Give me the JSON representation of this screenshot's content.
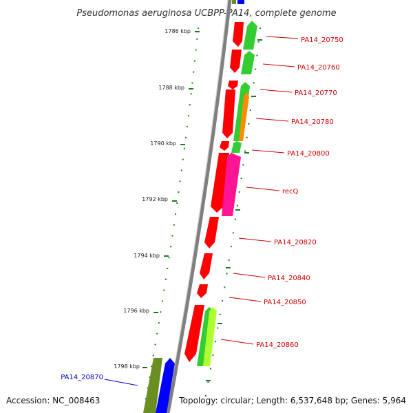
{
  "title": "Pseudomonas aeruginosa UCBPP-PA14, complete genome",
  "accession": "Accession: NC_008463",
  "topology": "Topology: circular; Length: 6,537,648 bp; Genes: 5,964",
  "colors": {
    "backbone": "#808080",
    "tick": "#1a7a1a",
    "label_red": "#cc0000",
    "label_blue": "#0000cc",
    "red": "#ff0000",
    "green": "#33cc33",
    "magenta": "#ff1493",
    "orange": "#ff8c00",
    "yellowgreen": "#adff2f",
    "olive": "#6b8e23",
    "blue": "#0000ff"
  },
  "ticks": [
    "1786 kbp",
    "1788 kbp",
    "1790 kbp",
    "1792 kbp",
    "1794 kbp",
    "1796 kbp",
    "1798 kbp"
  ],
  "gene_labels": [
    {
      "text": "PA14_20750",
      "color": "red"
    },
    {
      "text": "PA14_20760",
      "color": "red"
    },
    {
      "text": "PA14_20770",
      "color": "red"
    },
    {
      "text": "PA14_20780",
      "color": "red"
    },
    {
      "text": "PA14_20800",
      "color": "red"
    },
    {
      "text": "recQ",
      "color": "red"
    },
    {
      "text": "PA14_20820",
      "color": "red"
    },
    {
      "text": "PA14_20840",
      "color": "red"
    },
    {
      "text": "PA14_20850",
      "color": "red"
    },
    {
      "text": "PA14_20860",
      "color": "red"
    },
    {
      "text": "PA14_20870",
      "color": "blue"
    }
  ]
}
